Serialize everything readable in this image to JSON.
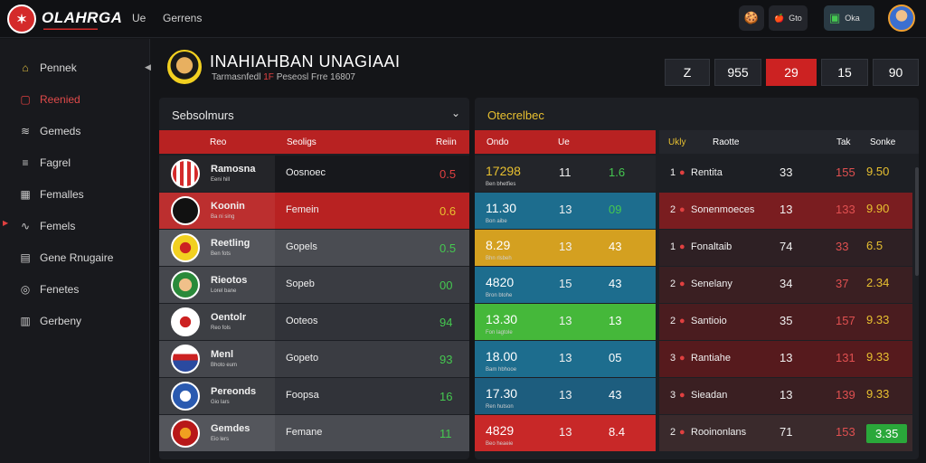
{
  "topbar": {
    "logo_glyph": "✶",
    "brand": "OLAHRGA",
    "brand_sub": "▬▬▬▬▬▬▬▬▬▬▬▬",
    "nav": [
      "Ue",
      "Gerrens"
    ],
    "pill_1_icon": "🍪",
    "pill_2_icon": "🍎",
    "pill_2_label": "Gto",
    "pill_3_icon": "▣",
    "pill_3_label": "Oka"
  },
  "sidebar": {
    "collapse_icon": "◀",
    "items": [
      {
        "icon": "house-icon",
        "glyph": "⌂",
        "label": "Pennek"
      },
      {
        "icon": "chat-icon",
        "glyph": "▢",
        "label": "Reenied"
      },
      {
        "icon": "chart-icon",
        "glyph": "≋",
        "label": "Gemeds"
      },
      {
        "icon": "list-icon",
        "glyph": "≡",
        "label": "Fagrel"
      },
      {
        "icon": "grid-icon",
        "glyph": "▦",
        "label": "Femalles"
      },
      {
        "icon": "trend-icon",
        "glyph": "∿",
        "label": "Femels"
      },
      {
        "icon": "stats-icon",
        "glyph": "▤",
        "label": "Gene Rnugaire"
      },
      {
        "icon": "globe-icon",
        "glyph": "◎",
        "label": "Fenetes"
      },
      {
        "icon": "bars-icon",
        "glyph": "▥",
        "label": "Gerbeny"
      }
    ]
  },
  "header": {
    "title": "INAHIAHBAN UNAGIAAI",
    "sub_a": "Tarmasnfedl",
    "sub_b": "1F",
    "sub_c": "Peseosl Frre",
    "sub_d": "16807",
    "scores": [
      "Z",
      "955",
      "29",
      "15",
      "90"
    ]
  },
  "panel_left": {
    "title": "Sebsolmurs",
    "caret": "⌄",
    "columns": [
      "Reo",
      "Seoligs",
      "Reiin"
    ],
    "rows": [
      {
        "name": "Ramosna",
        "sub": "Eeni hill",
        "stat": "Oosnoec",
        "value": "0.5",
        "color": "#e04040"
      },
      {
        "name": "Koonin",
        "sub": "Ba ni sing",
        "stat": "Femein",
        "value": "0.6",
        "color": "#e8c030"
      },
      {
        "name": "Reetling",
        "sub": "Ben fots",
        "stat": "Gopels",
        "value": "0.5",
        "color": "#45c850"
      },
      {
        "name": "Rieotos",
        "sub": "Lorel bane",
        "stat": "Sopeb",
        "value": "00",
        "color": "#45c850"
      },
      {
        "name": "Oentolr",
        "sub": "Reo fols",
        "stat": "Ooteos",
        "value": "94",
        "color": "#45c850"
      },
      {
        "name": "Menl",
        "sub": "Bhoto eum",
        "stat": "Gopeto",
        "value": "93",
        "color": "#45c850"
      },
      {
        "name": "Pereonds",
        "sub": "Gio lars",
        "stat": "Foopsa",
        "value": "16",
        "color": "#45c850"
      },
      {
        "name": "Gemdes",
        "sub": "Eio lers",
        "stat": "Femane",
        "value": "11",
        "color": "#45c850"
      }
    ]
  },
  "panel_right": {
    "title": "Otecrelbec",
    "columns_a": [
      "Ondo",
      "Ue"
    ],
    "columns_b": [
      "Ukly",
      "Raotte",
      "Tak",
      "Sonke"
    ],
    "rows": [
      {
        "big": "17298",
        "sub": "Ben bhetfies",
        "a": "11",
        "b": "1.6",
        "rank": "1",
        "team": "Rentita",
        "c": "33",
        "d": "155",
        "e": "9.50"
      },
      {
        "big": "11.30",
        "sub": "Bon aibe",
        "a": "13",
        "b": "09",
        "rank": "2",
        "team": "Sonenmoeces",
        "c": "13",
        "d": "133",
        "e": "9.90"
      },
      {
        "big": "8.29",
        "sub": "Bhn rlsbeh",
        "a": "13",
        "b": "43",
        "rank": "1",
        "team": "Fonaltaib",
        "c": "74",
        "d": "33",
        "e": "6.5"
      },
      {
        "big": "4820",
        "sub": "Bron btohe",
        "a": "15",
        "b": "43",
        "rank": "2",
        "team": "Senelany",
        "c": "34",
        "d": "37",
        "e": "2.34"
      },
      {
        "big": "13.30",
        "sub": "Fon lagtole",
        "a": "13",
        "b": "13",
        "rank": "2",
        "team": "Santioio",
        "c": "35",
        "d": "157",
        "e": "9.33"
      },
      {
        "big": "18.00",
        "sub": "Bam hbhooe",
        "a": "13",
        "b": "05",
        "rank": "3",
        "team": "Rantiahe",
        "c": "13",
        "d": "131",
        "e": "9.33"
      },
      {
        "big": "17.30",
        "sub": "Ren hutson",
        "a": "13",
        "b": "43",
        "rank": "3",
        "team": "Sieadan",
        "c": "13",
        "d": "139",
        "e": "9.33"
      },
      {
        "big": "4829",
        "sub": "Beo heaeie",
        "a": "13",
        "b": "8.4",
        "rank": "2",
        "team": "Rooinonlans",
        "c": "71",
        "d": "153",
        "e": "3.35"
      }
    ]
  },
  "colors": {
    "accent": "#cc2222",
    "positive": "#45c850",
    "warning": "#e8c030"
  }
}
